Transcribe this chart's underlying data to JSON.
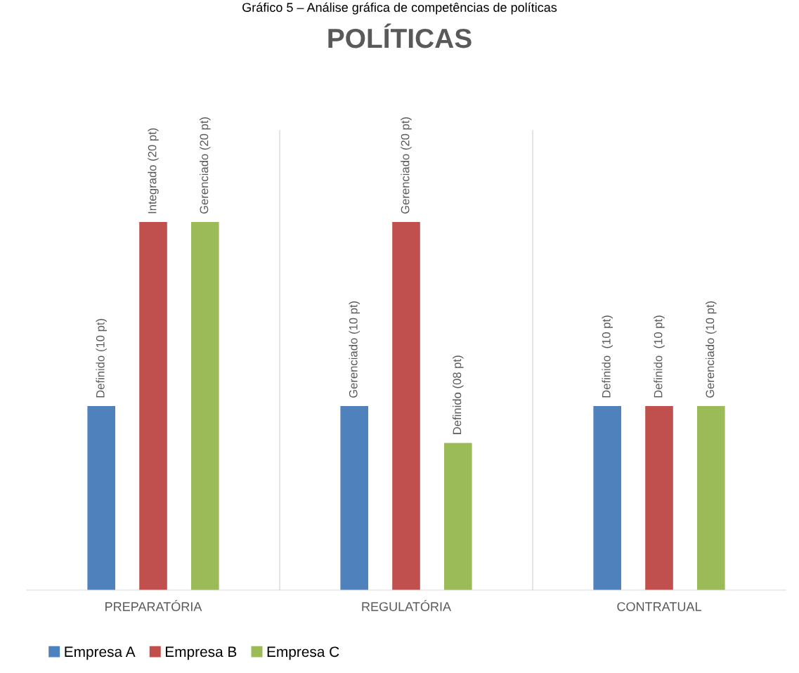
{
  "chart_data": {
    "type": "bar",
    "title": "POLÍTICAS",
    "annotations": [
      "Gráfico 5 – Análise gráfica de competências de políticas"
    ],
    "categories": [
      "PREPARATÓRIA",
      "REGULATÓRIA",
      "CONTRATUAL"
    ],
    "series": [
      {
        "name": "Empresa A",
        "color": "#4f81bd",
        "values": [
          10,
          10,
          10
        ],
        "value_labels": [
          "Definido (10 pt)",
          "Gerenciado (10 pt)",
          "Definido  (10 pt)"
        ]
      },
      {
        "name": "Empresa B",
        "color": "#c0504d",
        "values": [
          20,
          20,
          10
        ],
        "value_labels": [
          "Integrado (20 pt)",
          "Gerenciado (20 pt)",
          "Definido  (10 pt)"
        ]
      },
      {
        "name": "Empresa C",
        "color": "#9bbb59",
        "values": [
          20,
          8,
          10
        ],
        "value_labels": [
          "Gerenciado (20 pt)",
          "Definido (08 pt)",
          "Gerenciado (10 pt)"
        ]
      }
    ],
    "grid": "x",
    "legend": "bottom left"
  }
}
